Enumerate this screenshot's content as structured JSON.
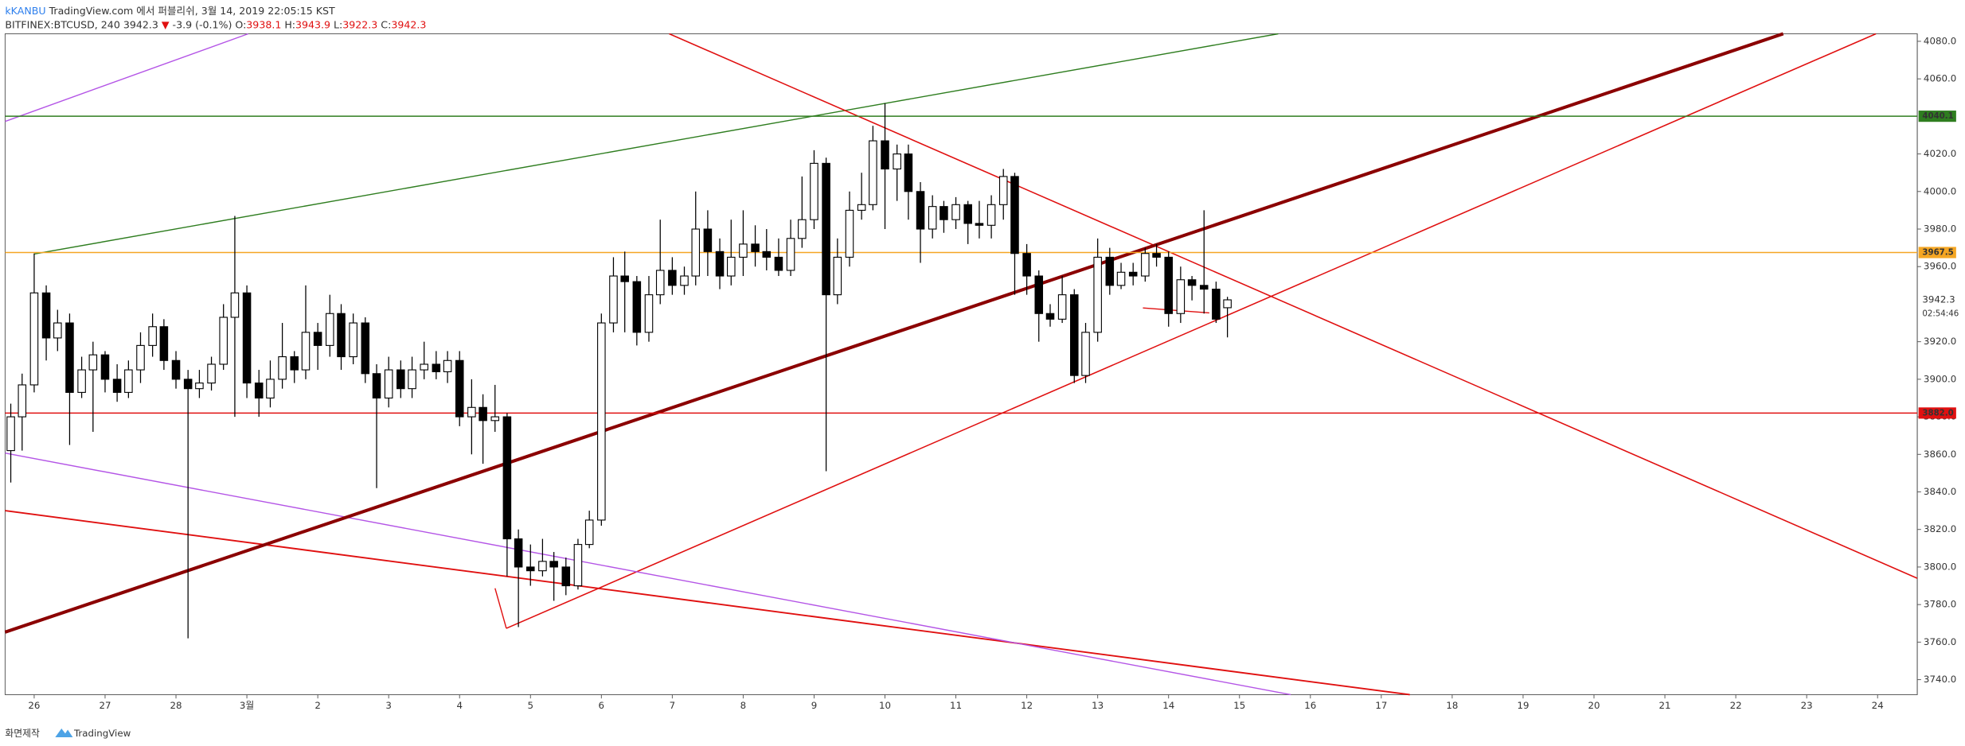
{
  "header": {
    "author": "kKANBU",
    "published": "TradingView.com 에서 퍼블리쉬, 3월 14, 2019 22:05:15 KST",
    "symbol": "BITFINEX:BTCUSD, 240",
    "last": "3942.3",
    "arrow": "▼",
    "change": "-3.9 (-0.1%)",
    "ohlc": [
      {
        "key": "O:",
        "value": "3938.1"
      },
      {
        "key": "H:",
        "value": "3943.9"
      },
      {
        "key": "L:",
        "value": "3922.3"
      },
      {
        "key": "C:",
        "value": "3942.3"
      }
    ]
  },
  "footer": {
    "made": "화면제작",
    "brand": "TradingView"
  },
  "chart_data": {
    "type": "candlestick",
    "up_color": "#ffffff",
    "down_color": "#000000",
    "xlim": [
      -0.41,
      26.56
    ],
    "ylim": [
      3732,
      4084
    ],
    "xticks": [
      {
        "value": 0,
        "label": "26"
      },
      {
        "value": 1,
        "label": "27"
      },
      {
        "value": 2,
        "label": "28"
      },
      {
        "value": 3,
        "label": "3월"
      },
      {
        "value": 4,
        "label": "2"
      },
      {
        "value": 5,
        "label": "3"
      },
      {
        "value": 6,
        "label": "4"
      },
      {
        "value": 7,
        "label": "5"
      },
      {
        "value": 8,
        "label": "6"
      },
      {
        "value": 9,
        "label": "7"
      },
      {
        "value": 10,
        "label": "8"
      },
      {
        "value": 11,
        "label": "9"
      },
      {
        "value": 12,
        "label": "10"
      },
      {
        "value": 13,
        "label": "11"
      },
      {
        "value": 14,
        "label": "12"
      },
      {
        "value": 15,
        "label": "13"
      },
      {
        "value": 16,
        "label": "14"
      },
      {
        "value": 17,
        "label": "15"
      },
      {
        "value": 18,
        "label": "16"
      },
      {
        "value": 19,
        "label": "17"
      },
      {
        "value": 20,
        "label": "18"
      },
      {
        "value": 21,
        "label": "19"
      },
      {
        "value": 22,
        "label": "20"
      },
      {
        "value": 23,
        "label": "21"
      },
      {
        "value": 24,
        "label": "22"
      },
      {
        "value": 25,
        "label": "23"
      },
      {
        "value": 26,
        "label": "24"
      }
    ],
    "yticks": [
      {
        "value": 3740,
        "label": "3740.0"
      },
      {
        "value": 3760,
        "label": "3760.0"
      },
      {
        "value": 3780,
        "label": "3780.0"
      },
      {
        "value": 3800,
        "label": "3800.0"
      },
      {
        "value": 3820,
        "label": "3820.0"
      },
      {
        "value": 3840,
        "label": "3840.0"
      },
      {
        "value": 3860,
        "label": "3860.0"
      },
      {
        "value": 3880,
        "label": "3880.0"
      },
      {
        "value": 3900,
        "label": "3900.0"
      },
      {
        "value": 3920,
        "label": "3920.0"
      },
      {
        "value": 3960,
        "label": "3960.0"
      },
      {
        "value": 3980,
        "label": "3980.0"
      },
      {
        "value": 4000,
        "label": "4000.0"
      },
      {
        "value": 4020,
        "label": "4020.0"
      },
      {
        "value": 4060,
        "label": "4060.0"
      },
      {
        "value": 4080,
        "label": "4080.0"
      }
    ],
    "levels": [
      {
        "value": 4040.1,
        "label": "4040.1",
        "color": "#2e7d1f"
      },
      {
        "value": 3967.5,
        "label": "3967.5",
        "color": "#f5a623"
      },
      {
        "value": 3882,
        "label": "3882.0",
        "color": "#e01010"
      }
    ],
    "last_price": {
      "value": 3942.3,
      "label": "3942.3",
      "countdown": "02:54:46"
    },
    "x": [
      -0.33,
      -0.17,
      0,
      0.17,
      0.33,
      0.5,
      0.67,
      0.83,
      1,
      1.17,
      1.33,
      1.5,
      1.67,
      1.83,
      2,
      2.17,
      2.33,
      2.5,
      2.67,
      2.83,
      3,
      3.17,
      3.33,
      3.5,
      3.67,
      3.83,
      4,
      4.17,
      4.33,
      4.5,
      4.67,
      4.83,
      5,
      5.17,
      5.33,
      5.5,
      5.67,
      5.83,
      6,
      6.17,
      6.33,
      6.5,
      6.67,
      6.83,
      7,
      7.17,
      7.33,
      7.5,
      7.67,
      7.83,
      8,
      8.17,
      8.33,
      8.5,
      8.67,
      8.83,
      9,
      9.17,
      9.33,
      9.5,
      9.67,
      9.83,
      10,
      10.17,
      10.33,
      10.5,
      10.67,
      10.83,
      11,
      11.17,
      11.33,
      11.5,
      11.67,
      11.83,
      12,
      12.17,
      12.33,
      12.5,
      12.67,
      12.83,
      13,
      13.17,
      13.33,
      13.5,
      13.67,
      13.83,
      14,
      14.17,
      14.33,
      14.5,
      14.67,
      14.83,
      15,
      15.17,
      15.33,
      15.5,
      15.67,
      15.83,
      16,
      16.17,
      16.33,
      16.5,
      16.67,
      16.83
    ],
    "open": [
      3862,
      3880,
      3897,
      3946,
      3922,
      3930,
      3893,
      3905,
      3913,
      3900,
      3893,
      3905,
      3918,
      3928,
      3910,
      3900,
      3895,
      3898,
      3908,
      3933,
      3946,
      3898,
      3890,
      3900,
      3912,
      3905,
      3925,
      3918,
      3935,
      3912,
      3930,
      3903,
      3890,
      3905,
      3895,
      3905,
      3908,
      3904,
      3910,
      3880,
      3885,
      3878,
      3880,
      3815,
      3800,
      3798,
      3803,
      3800,
      3790,
      3812,
      3825,
      3930,
      3955,
      3952,
      3925,
      3945,
      3958,
      3950,
      3955,
      3980,
      3968,
      3955,
      3965,
      3972,
      3968,
      3965,
      3958,
      3975,
      3985,
      4015,
      3945,
      3965,
      3990,
      3993,
      4027,
      4012,
      4020,
      4000,
      3980,
      3992,
      3985,
      3993,
      3983,
      3982,
      3993,
      4008,
      3967,
      3955,
      3935,
      3932,
      3945,
      3902,
      3925,
      3965,
      3950,
      3957,
      3955,
      3967,
      3965,
      3935,
      3953,
      3950,
      3948,
      3938.1
    ],
    "high": [
      3887,
      3903,
      3967,
      3950,
      3937,
      3935,
      3912,
      3920,
      3915,
      3908,
      3910,
      3925,
      3935,
      3932,
      3915,
      3905,
      3905,
      3912,
      3940,
      3987,
      3950,
      3905,
      3910,
      3930,
      3915,
      3950,
      3930,
      3945,
      3940,
      3935,
      3933,
      3908,
      3912,
      3910,
      3912,
      3920,
      3915,
      3915,
      3915,
      3900,
      3892,
      3897,
      3882,
      3820,
      3812,
      3815,
      3808,
      3805,
      3815,
      3830,
      3935,
      3965,
      3968,
      3955,
      3955,
      3985,
      3965,
      3960,
      4000,
      3990,
      3975,
      3985,
      3990,
      3982,
      3980,
      3975,
      3985,
      4008,
      4022,
      4018,
      3975,
      4000,
      4010,
      4035,
      4047,
      4025,
      4025,
      4005,
      3998,
      3995,
      3997,
      3995,
      3995,
      3998,
      4012,
      4010,
      3972,
      3958,
      3940,
      3955,
      3948,
      3930,
      3975,
      3970,
      3962,
      3962,
      3970,
      3972,
      3968,
      3960,
      3955,
      3990,
      3952,
      3943.9
    ],
    "low": [
      3845,
      3862,
      3893,
      3910,
      3915,
      3865,
      3890,
      3872,
      3893,
      3888,
      3890,
      3898,
      3912,
      3905,
      3895,
      3762,
      3890,
      3894,
      3905,
      3880,
      3890,
      3880,
      3885,
      3895,
      3898,
      3900,
      3905,
      3912,
      3905,
      3908,
      3898,
      3842,
      3885,
      3890,
      3890,
      3900,
      3900,
      3898,
      3875,
      3860,
      3855,
      3872,
      3795,
      3768,
      3790,
      3795,
      3782,
      3785,
      3788,
      3810,
      3822,
      3925,
      3925,
      3918,
      3920,
      3940,
      3945,
      3945,
      3950,
      3955,
      3948,
      3950,
      3955,
      3960,
      3958,
      3955,
      3955,
      3970,
      3980,
      3851,
      3940,
      3960,
      3985,
      3990,
      3980,
      3995,
      3985,
      3962,
      3975,
      3978,
      3980,
      3972,
      3975,
      3975,
      3985,
      3945,
      3945,
      3920,
      3928,
      3930,
      3898,
      3898,
      3920,
      3945,
      3948,
      3950,
      3952,
      3960,
      3928,
      3930,
      3942,
      3935,
      3930,
      3922.3
    ],
    "close": [
      3880,
      3897,
      3946,
      3922,
      3930,
      3893,
      3905,
      3913,
      3900,
      3893,
      3905,
      3918,
      3928,
      3910,
      3900,
      3895,
      3898,
      3908,
      3933,
      3946,
      3898,
      3890,
      3900,
      3912,
      3905,
      3925,
      3918,
      3935,
      3912,
      3930,
      3903,
      3890,
      3905,
      3895,
      3905,
      3908,
      3904,
      3910,
      3880,
      3885,
      3878,
      3880,
      3815,
      3800,
      3798,
      3803,
      3800,
      3790,
      3812,
      3825,
      3930,
      3955,
      3952,
      3925,
      3945,
      3958,
      3950,
      3955,
      3980,
      3968,
      3955,
      3965,
      3972,
      3968,
      3965,
      3958,
      3975,
      3985,
      4015,
      3945,
      3965,
      3990,
      3993,
      4027,
      4012,
      4020,
      4000,
      3980,
      3992,
      3985,
      3993,
      3983,
      3982,
      3993,
      4008,
      3967,
      3955,
      3935,
      3932,
      3945,
      3902,
      3925,
      3965,
      3950,
      3957,
      3955,
      3967,
      3965,
      3935,
      3953,
      3950,
      3948,
      3932,
      3942.3
    ]
  }
}
